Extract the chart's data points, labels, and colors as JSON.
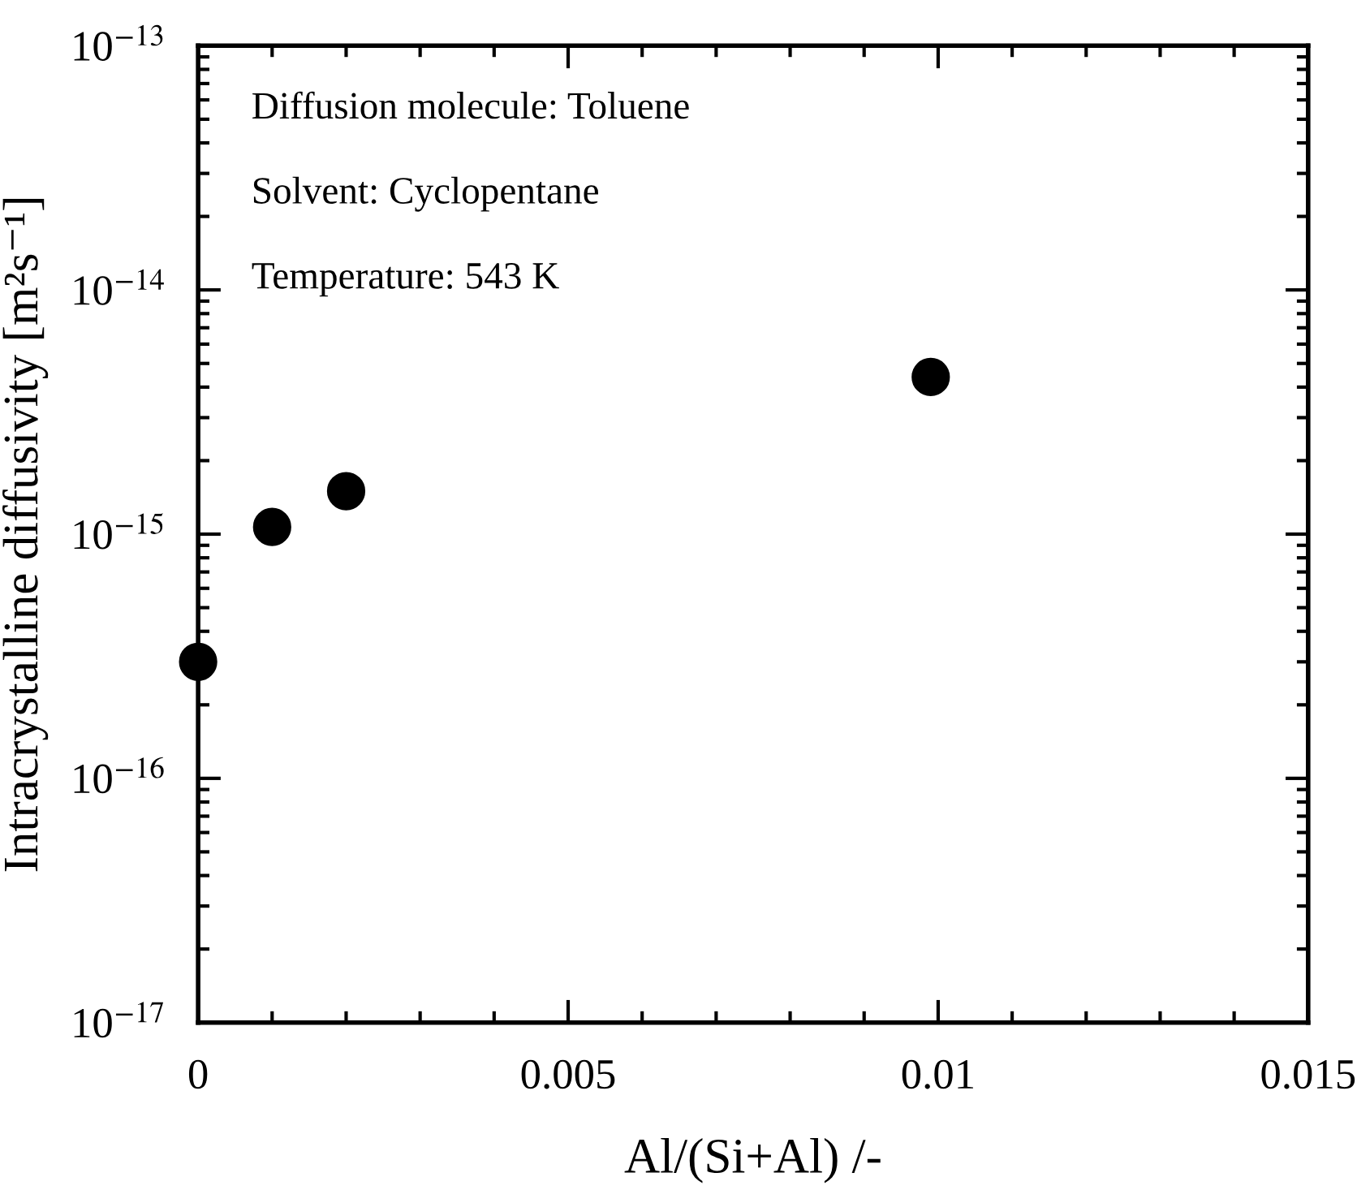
{
  "chart_data": {
    "type": "scatter",
    "xlabel": "Al/(Si+Al) /-",
    "ylabel": "Intracrystalline diffusivity [m²s⁻¹]",
    "x": [
      0,
      0.001,
      0.002,
      0.0099
    ],
    "series": [
      {
        "color": "#000000",
        "values": [
          3e-16,
          1.07e-15,
          1.5e-15,
          4.4e-15
        ]
      }
    ],
    "marker": "circle",
    "log": "y",
    "xlim": [
      0,
      0.015
    ],
    "xticks": [
      0,
      0.005,
      0.01,
      0.015
    ],
    "ylim": [
      1e-17,
      1e-13
    ],
    "yticks": [
      {
        "value": 1e-17,
        "label": "10$^{−17}$"
      },
      {
        "value": 1e-16,
        "label": "10$^{−16}$"
      },
      {
        "value": 1e-15,
        "label": "10$^{−15}$"
      },
      {
        "value": 1e-14,
        "label": "10$^{−14}$"
      },
      {
        "value": 1e-13,
        "label": "10$^{−13}$"
      }
    ],
    "annotations": [
      "Diffusion molecule: Toluene",
      "Solvent: Cyclopentane",
      "Temperature: 543 K"
    ]
  }
}
